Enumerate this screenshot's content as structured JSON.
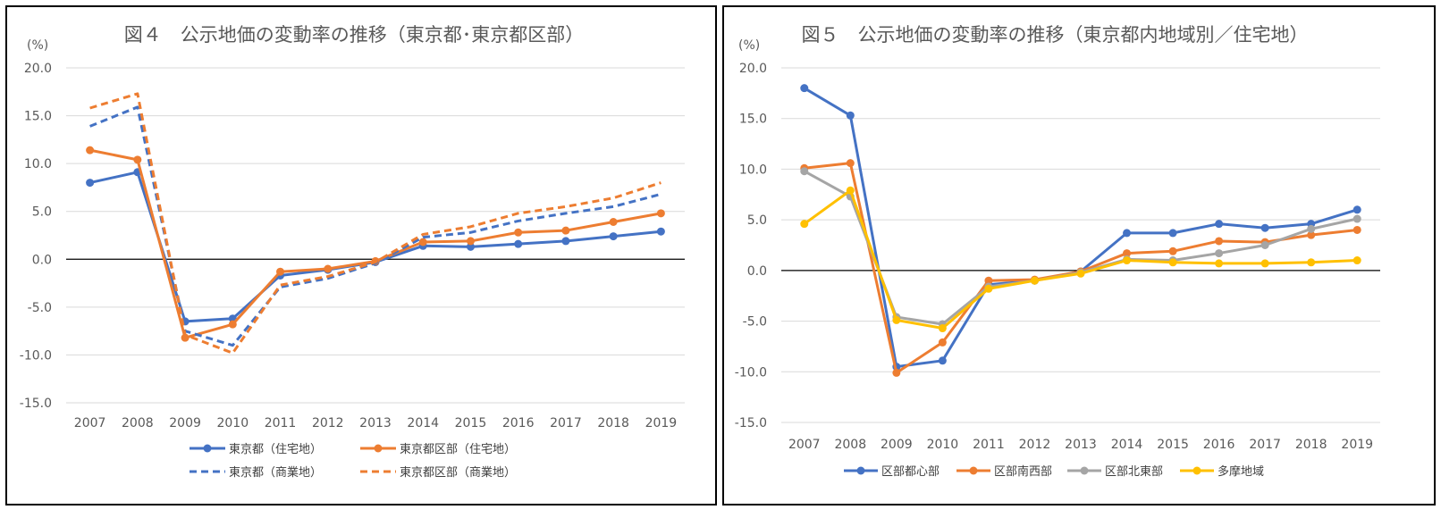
{
  "chart_data": [
    {
      "type": "line",
      "title": "図４　公示地価の変動率の推移（東京都･東京都区部）",
      "unit_label": "(%)",
      "x": [
        "2007",
        "2008",
        "2009",
        "2010",
        "2011",
        "2012",
        "2013",
        "2014",
        "2015",
        "2016",
        "2017",
        "2018",
        "2019"
      ],
      "ylim": [
        -15,
        20
      ],
      "yticks": [
        "20.0",
        "15.0",
        "10.0",
        "5.0",
        "0.0",
        "-5.0",
        "-10.0",
        "-15.0"
      ],
      "ytick_values": [
        20,
        15,
        10,
        5,
        0,
        -5,
        -10,
        -15
      ],
      "grid": true,
      "legend_position": "bottom",
      "series": [
        {
          "name": "東京都（住宅地）",
          "color": "#4472C4",
          "style": "solid",
          "marker": true,
          "values": [
            8.0,
            9.1,
            -6.5,
            -6.2,
            -1.7,
            -1.1,
            -0.3,
            1.4,
            1.3,
            1.6,
            1.9,
            2.4,
            2.9
          ]
        },
        {
          "name": "東京都区部（住宅地）",
          "color": "#ED7D31",
          "style": "solid",
          "marker": true,
          "values": [
            11.4,
            10.4,
            -8.2,
            -6.8,
            -1.3,
            -1.0,
            -0.2,
            1.8,
            1.9,
            2.8,
            3.0,
            3.9,
            4.8
          ]
        },
        {
          "name": "東京都（商業地）",
          "color": "#4472C4",
          "style": "dashed",
          "marker": false,
          "values": [
            13.9,
            15.9,
            -7.5,
            -9.0,
            -2.9,
            -2.0,
            -0.4,
            2.3,
            2.8,
            4.0,
            4.8,
            5.5,
            6.8
          ]
        },
        {
          "name": "東京都区部（商業地）",
          "color": "#ED7D31",
          "style": "dashed",
          "marker": false,
          "values": [
            15.8,
            17.3,
            -7.9,
            -9.8,
            -2.7,
            -1.8,
            -0.3,
            2.6,
            3.4,
            4.8,
            5.5,
            6.4,
            8.0
          ]
        }
      ]
    },
    {
      "type": "line",
      "title": "図５　公示地価の変動率の推移（東京都内地域別／住宅地）",
      "unit_label": "(%)",
      "x": [
        "2007",
        "2008",
        "2009",
        "2010",
        "2011",
        "2012",
        "2013",
        "2014",
        "2015",
        "2016",
        "2017",
        "2018",
        "2019"
      ],
      "ylim": [
        -15,
        20
      ],
      "yticks": [
        "20.0",
        "15.0",
        "10.0",
        "5.0",
        "0.0",
        "-5.0",
        "-10.0",
        "-15.0"
      ],
      "ytick_values": [
        20,
        15,
        10,
        5,
        0,
        -5,
        -10,
        -15
      ],
      "grid": true,
      "legend_position": "bottom",
      "series": [
        {
          "name": "区部都心部",
          "color": "#4472C4",
          "style": "solid",
          "marker": true,
          "values": [
            18.0,
            15.3,
            -9.5,
            -8.9,
            -1.4,
            -1.0,
            -0.1,
            3.7,
            3.7,
            4.6,
            4.2,
            4.6,
            6.0
          ]
        },
        {
          "name": "区部南西部",
          "color": "#ED7D31",
          "style": "solid",
          "marker": true,
          "values": [
            10.1,
            10.6,
            -10.1,
            -7.1,
            -1.0,
            -0.9,
            -0.1,
            1.7,
            1.9,
            2.9,
            2.8,
            3.5,
            4.0
          ]
        },
        {
          "name": "区部北東部",
          "color": "#A5A5A5",
          "style": "solid",
          "marker": true,
          "values": [
            9.8,
            7.3,
            -4.6,
            -5.3,
            -1.6,
            -1.0,
            -0.2,
            1.1,
            1.0,
            1.7,
            2.5,
            4.1,
            5.1
          ]
        },
        {
          "name": "多摩地域",
          "color": "#FFC000",
          "style": "solid",
          "marker": true,
          "values": [
            4.6,
            7.9,
            -4.9,
            -5.7,
            -1.8,
            -1.0,
            -0.3,
            1.0,
            0.8,
            0.7,
            0.7,
            0.8,
            1.0
          ]
        }
      ]
    }
  ]
}
